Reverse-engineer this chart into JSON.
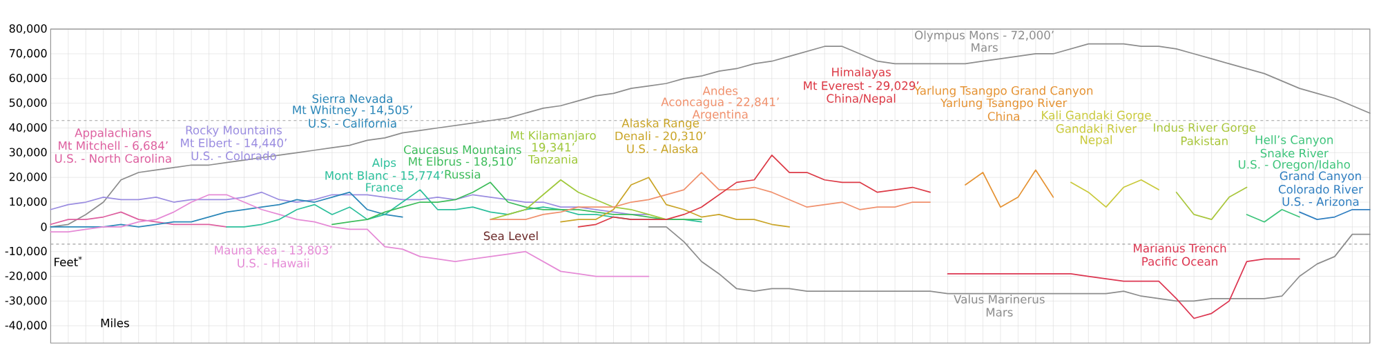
{
  "chart_data": {
    "type": "line",
    "xlabel": "Miles",
    "ylabel": "Feet$^{*}$",
    "categories": [
      null,
      null,
      null,
      null,
      null,
      null,
      null,
      null,
      null,
      null,
      null,
      null,
      null,
      null,
      null,
      null,
      null,
      null,
      null,
      null,
      null,
      null,
      null,
      null,
      null,
      null,
      null,
      null,
      null,
      null,
      null,
      null,
      null,
      null,
      null,
      null,
      null,
      null,
      null,
      null,
      null,
      null,
      null,
      null,
      null,
      null,
      null,
      null,
      null,
      null,
      null,
      null,
      null,
      null,
      null,
      null,
      null,
      null,
      null,
      null,
      null,
      null,
      null,
      null,
      null,
      null,
      null,
      null,
      null,
      null,
      null,
      null,
      null,
      null,
      null,
      null
    ],
    "ylim": [
      -47000,
      80000
    ],
    "yticks": [
      {
        "value": -40000,
        "label": "-40,000"
      },
      {
        "value": -30000,
        "label": "-30,000"
      },
      {
        "value": -20000,
        "label": "-20,000"
      },
      {
        "value": -10000,
        "label": "-10,000"
      },
      0,
      {
        "value": 10000,
        "label": "10,000"
      },
      {
        "value": 20000,
        "label": "20,000"
      },
      {
        "value": 30000,
        "label": "30,000"
      },
      {
        "value": 40000,
        "label": "40,000"
      },
      {
        "value": 50000,
        "label": "50,000"
      },
      {
        "value": 60000,
        "label": "60,000"
      },
      {
        "value": 70000,
        "label": "70,000"
      },
      {
        "value": 80000,
        "label": "80,000"
      }
    ],
    "tick_labels": "y",
    "grid": true,
    "line_style": "solid",
    "ref_lines": [
      {
        "axis": "y",
        "value": 43000,
        "color": "#a0a0a0",
        "line_style": "dashed"
      },
      {
        "axis": "y",
        "value": -7000,
        "color": "#a0a0a0",
        "line_style": "dashed"
      }
    ],
    "series": [
      {
        "color": "#8c8c8c",
        "values": [
          0,
          1000,
          5000,
          10000,
          19000,
          22000,
          23000,
          24000,
          25000,
          25000,
          26000,
          27000,
          28000,
          29000,
          30000,
          31000,
          32000,
          33000,
          35000,
          36000,
          38000,
          39000,
          40000,
          41000,
          42000,
          43000,
          44000,
          46000,
          48000,
          49000,
          51000,
          53000,
          54000,
          56000,
          57000,
          58000,
          60000,
          61000,
          63000,
          64000,
          66000,
          67000,
          69000,
          71000,
          73000,
          73000,
          70000,
          67000,
          66000,
          66000,
          66000,
          66000,
          66000,
          67000,
          68000,
          69000,
          70000,
          70000,
          72000,
          74000,
          74000,
          74000,
          73000,
          73000,
          72000,
          70000,
          68000,
          66000,
          64000,
          62000,
          59000,
          56000,
          54000,
          52000,
          49000,
          46000
        ]
      },
      {
        "color": "#8c8c8c",
        "values": [
          null,
          null,
          null,
          null,
          null,
          null,
          null,
          null,
          null,
          null,
          null,
          null,
          null,
          null,
          null,
          null,
          null,
          null,
          null,
          null,
          null,
          null,
          null,
          null,
          null,
          null,
          null,
          null,
          null,
          null,
          null,
          null,
          null,
          null,
          0,
          0,
          -6000,
          -14000,
          -19000,
          -25000,
          -26000,
          -25000,
          -25000,
          -26000,
          -26000,
          -26000,
          -26000,
          -26000,
          -26000,
          -26000,
          -26000,
          -27000,
          -27000,
          -27000,
          -27000,
          -27000,
          -27000,
          -27000,
          -27000,
          -27000,
          -27000,
          -26000,
          -28000,
          -29000,
          -30000,
          -30000,
          -29000,
          -29000,
          -29000,
          -29000,
          -28000,
          -20000,
          -15000,
          -12000,
          -3000,
          -3000
        ]
      },
      {
        "color": "#dd5f9f",
        "values": [
          1000,
          3000,
          3000,
          4000,
          6000,
          3000,
          2000,
          1000,
          1000,
          1000,
          0,
          null,
          null,
          null,
          null,
          null,
          null,
          null,
          null,
          null,
          null,
          null,
          null,
          null,
          null,
          null,
          null,
          null,
          null,
          null,
          null,
          null,
          null,
          null,
          null,
          null,
          null,
          null,
          null,
          null,
          null,
          null,
          null,
          null,
          null,
          null,
          null,
          null,
          null,
          null,
          null,
          null,
          null,
          null,
          null,
          null,
          null,
          null,
          null,
          null,
          null,
          null,
          null,
          null,
          null,
          null,
          null,
          null,
          null,
          null,
          null,
          null,
          null,
          null,
          null,
          null
        ]
      },
      {
        "color": "#9a8ce0",
        "values": [
          7000,
          9000,
          10000,
          12000,
          11000,
          11000,
          12000,
          10000,
          11000,
          11000,
          11000,
          12000,
          14000,
          11000,
          10000,
          11000,
          13000,
          13000,
          13000,
          12000,
          11000,
          11000,
          12000,
          11000,
          13000,
          12000,
          11000,
          10000,
          10000,
          8000,
          8000,
          7000,
          6000,
          5000,
          5000,
          null,
          null,
          null,
          null,
          null,
          null,
          null,
          null,
          null,
          null,
          null,
          null,
          null,
          null,
          null,
          null,
          null,
          null,
          null,
          null,
          null,
          null,
          null,
          null,
          null,
          null,
          null,
          null,
          null,
          null,
          null,
          null,
          null,
          null,
          null,
          null,
          null,
          null,
          null,
          null,
          null
        ]
      },
      {
        "color": "#2a86b8",
        "values": [
          0,
          0,
          0,
          0,
          1000,
          0,
          1000,
          2000,
          2000,
          4000,
          6000,
          7000,
          8000,
          9000,
          11000,
          10000,
          12000,
          14000,
          7000,
          5000,
          4000,
          null,
          null,
          null,
          null,
          null,
          null,
          null,
          null,
          null,
          null,
          null,
          null,
          null,
          null,
          null,
          null,
          null,
          null,
          null,
          null,
          null,
          null,
          null,
          null,
          null,
          null,
          null,
          null,
          null,
          null,
          null,
          null,
          null,
          null,
          null,
          null,
          null,
          null,
          null,
          null,
          null,
          null,
          null,
          null,
          null,
          null,
          null,
          null,
          null,
          null,
          null,
          null,
          null,
          null,
          null
        ]
      },
      {
        "color": "#e58ad6",
        "values": [
          -2000,
          -2000,
          -1000,
          0,
          0,
          2000,
          3000,
          6000,
          10000,
          13000,
          13000,
          10000,
          7000,
          5000,
          3000,
          2000,
          0,
          -1000,
          -1000,
          -8000,
          -9000,
          -12000,
          -13000,
          -14000,
          -13000,
          -12000,
          -11000,
          -10000,
          -14000,
          -18000,
          -19000,
          -20000,
          -20000,
          -20000,
          -20000,
          null,
          null,
          null,
          null,
          null,
          null,
          null,
          null,
          null,
          null,
          null,
          null,
          null,
          null,
          null,
          null,
          null,
          null,
          null,
          null,
          null,
          null,
          null,
          null,
          null,
          null,
          null,
          null,
          null,
          null,
          null,
          null,
          null,
          null,
          null,
          null,
          null,
          null,
          null,
          null,
          null
        ]
      },
      {
        "color": "#2bbf9b",
        "values": [
          null,
          null,
          null,
          null,
          null,
          null,
          null,
          null,
          null,
          null,
          0,
          0,
          1000,
          3000,
          7000,
          9000,
          5000,
          8000,
          3000,
          5000,
          10000,
          15000,
          7000,
          7000,
          8000,
          6000,
          5000,
          7000,
          8000,
          7000,
          5000,
          5000,
          4000,
          3000,
          3000,
          3000,
          3000,
          2000,
          null,
          null,
          null,
          null,
          null,
          null,
          null,
          null,
          null,
          null,
          null,
          null,
          null,
          null,
          null,
          null,
          null,
          null,
          null,
          null,
          null,
          null,
          null,
          null,
          null,
          null,
          null,
          null,
          null,
          null,
          null,
          null,
          null,
          null,
          null,
          null,
          null,
          null
        ]
      },
      {
        "color": "#3cbc5a",
        "values": [
          null,
          null,
          null,
          null,
          null,
          null,
          null,
          null,
          null,
          null,
          null,
          null,
          null,
          null,
          null,
          null,
          1000,
          2000,
          3000,
          6000,
          8000,
          10000,
          10000,
          11000,
          14000,
          18000,
          10000,
          8000,
          7000,
          7000,
          7000,
          6000,
          5000,
          5000,
          4000,
          3000,
          3000,
          3000,
          null,
          null,
          null,
          null,
          null,
          null,
          null,
          null,
          null,
          null,
          null,
          null,
          null,
          null,
          null,
          null,
          null,
          null,
          null,
          null,
          null,
          null,
          null,
          null,
          null,
          null,
          null,
          null,
          null,
          null,
          null,
          null,
          null,
          null,
          null,
          null,
          null,
          null
        ]
      },
      {
        "color": "#9fc83a",
        "values": [
          null,
          null,
          null,
          null,
          null,
          null,
          null,
          null,
          null,
          null,
          null,
          null,
          null,
          null,
          null,
          null,
          null,
          null,
          null,
          null,
          null,
          null,
          null,
          null,
          null,
          3000,
          5000,
          7000,
          13000,
          19000,
          14000,
          11000,
          8000,
          7000,
          5000,
          3000,
          null,
          null,
          null,
          null,
          null,
          null,
          null,
          null,
          null,
          null,
          null,
          null,
          null,
          null,
          null,
          null,
          null,
          null,
          null,
          null,
          null,
          null,
          null,
          null,
          null,
          null,
          null,
          null,
          null,
          null,
          null,
          null,
          null,
          null,
          null,
          null,
          null,
          null,
          null,
          null
        ]
      },
      {
        "color": "#c9a426",
        "values": [
          null,
          null,
          null,
          null,
          null,
          null,
          null,
          null,
          null,
          null,
          null,
          null,
          null,
          null,
          null,
          null,
          null,
          null,
          null,
          null,
          null,
          null,
          null,
          null,
          null,
          null,
          null,
          null,
          null,
          2000,
          3000,
          3000,
          7000,
          17000,
          20000,
          9000,
          7000,
          4000,
          5000,
          3000,
          3000,
          1000,
          0,
          null,
          null,
          null,
          null,
          null,
          null,
          null,
          null,
          null,
          null,
          null,
          null,
          null,
          null,
          null,
          null,
          null,
          null,
          null,
          null,
          null,
          null,
          null,
          null,
          null,
          null,
          null,
          null,
          null,
          null,
          null,
          null,
          null
        ]
      },
      {
        "color": "#f0906c",
        "values": [
          null,
          null,
          null,
          null,
          null,
          null,
          null,
          null,
          null,
          null,
          null,
          null,
          null,
          null,
          null,
          null,
          null,
          null,
          null,
          null,
          null,
          null,
          null,
          null,
          null,
          3000,
          3000,
          3000,
          5000,
          6000,
          8000,
          8000,
          8000,
          10000,
          11000,
          13000,
          15000,
          22000,
          15000,
          15000,
          16000,
          14000,
          11000,
          8000,
          9000,
          10000,
          7000,
          8000,
          8000,
          10000,
          10000,
          null,
          null,
          null,
          null,
          null,
          null,
          null,
          null,
          null,
          null,
          null,
          null,
          null,
          null,
          null,
          null,
          null,
          null,
          null,
          null,
          null,
          null,
          null,
          null,
          null
        ]
      },
      {
        "color": "#dc3945",
        "values": [
          null,
          null,
          null,
          null,
          null,
          null,
          null,
          null,
          null,
          null,
          null,
          null,
          null,
          null,
          null,
          null,
          null,
          null,
          null,
          null,
          null,
          null,
          null,
          null,
          null,
          null,
          null,
          null,
          null,
          null,
          0,
          1000,
          4000,
          3000,
          3000,
          3000,
          5000,
          8000,
          13000,
          18000,
          19000,
          29000,
          22000,
          22000,
          19000,
          18000,
          18000,
          14000,
          15000,
          16000,
          14000,
          null,
          null,
          null,
          null,
          null,
          null,
          null,
          null,
          null,
          null,
          null,
          null,
          null,
          null,
          null,
          null,
          null,
          null,
          null,
          null,
          null,
          null,
          null,
          null,
          null
        ]
      },
      {
        "color": "#e59232",
        "values": [
          null,
          null,
          null,
          null,
          null,
          null,
          null,
          null,
          null,
          null,
          null,
          null,
          null,
          null,
          null,
          null,
          null,
          null,
          null,
          null,
          null,
          null,
          null,
          null,
          null,
          null,
          null,
          null,
          null,
          null,
          null,
          null,
          null,
          null,
          null,
          null,
          null,
          null,
          null,
          null,
          null,
          null,
          null,
          null,
          null,
          null,
          null,
          null,
          null,
          null,
          null,
          null,
          17000,
          22000,
          8000,
          12000,
          23000,
          12000,
          null,
          null,
          null,
          null,
          null,
          null,
          null,
          null,
          null,
          null,
          null,
          null,
          null,
          null,
          null,
          null,
          null,
          null
        ]
      },
      {
        "color": "#c9c93a",
        "values": [
          null,
          null,
          null,
          null,
          null,
          null,
          null,
          null,
          null,
          null,
          null,
          null,
          null,
          null,
          null,
          null,
          null,
          null,
          null,
          null,
          null,
          null,
          null,
          null,
          null,
          null,
          null,
          null,
          null,
          null,
          null,
          null,
          null,
          null,
          null,
          null,
          null,
          null,
          null,
          null,
          null,
          null,
          null,
          null,
          null,
          null,
          null,
          null,
          null,
          null,
          null,
          null,
          null,
          null,
          null,
          null,
          null,
          null,
          18000,
          14000,
          8000,
          16000,
          19000,
          15000,
          null,
          null,
          null,
          null,
          null,
          null,
          null,
          null,
          null,
          null,
          null,
          null
        ]
      },
      {
        "color": "#a9c63c",
        "values": [
          null,
          null,
          null,
          null,
          null,
          null,
          null,
          null,
          null,
          null,
          null,
          null,
          null,
          null,
          null,
          null,
          null,
          null,
          null,
          null,
          null,
          null,
          null,
          null,
          null,
          null,
          null,
          null,
          null,
          null,
          null,
          null,
          null,
          null,
          null,
          null,
          null,
          null,
          null,
          null,
          null,
          null,
          null,
          null,
          null,
          null,
          null,
          null,
          null,
          null,
          null,
          null,
          null,
          null,
          null,
          null,
          null,
          null,
          null,
          null,
          null,
          null,
          null,
          null,
          14000,
          5000,
          3000,
          12000,
          16000,
          null,
          null,
          null,
          null,
          null,
          null,
          null
        ]
      },
      {
        "color": "#3cc47a",
        "values": [
          null,
          null,
          null,
          null,
          null,
          null,
          null,
          null,
          null,
          null,
          null,
          null,
          null,
          null,
          null,
          null,
          null,
          null,
          null,
          null,
          null,
          null,
          null,
          null,
          null,
          null,
          null,
          null,
          null,
          null,
          null,
          null,
          null,
          null,
          null,
          null,
          null,
          null,
          null,
          null,
          null,
          null,
          null,
          null,
          null,
          null,
          null,
          null,
          null,
          null,
          null,
          null,
          null,
          null,
          null,
          null,
          null,
          null,
          null,
          null,
          null,
          null,
          null,
          null,
          null,
          null,
          null,
          null,
          5000,
          2000,
          7000,
          4000,
          null,
          null,
          null,
          null
        ]
      },
      {
        "color": "#2f7ec0",
        "values": [
          null,
          null,
          null,
          null,
          null,
          null,
          null,
          null,
          null,
          null,
          null,
          null,
          null,
          null,
          null,
          null,
          null,
          null,
          null,
          null,
          null,
          null,
          null,
          null,
          null,
          null,
          null,
          null,
          null,
          null,
          null,
          null,
          null,
          null,
          null,
          null,
          null,
          null,
          null,
          null,
          null,
          null,
          null,
          null,
          null,
          null,
          null,
          null,
          null,
          null,
          null,
          null,
          null,
          null,
          null,
          null,
          null,
          null,
          null,
          null,
          null,
          null,
          null,
          null,
          null,
          null,
          null,
          null,
          null,
          null,
          null,
          6000,
          3000,
          4000,
          7000,
          7000
        ]
      },
      {
        "color": "#dc3550",
        "values": [
          null,
          null,
          null,
          null,
          null,
          null,
          null,
          null,
          null,
          null,
          null,
          null,
          null,
          null,
          null,
          null,
          null,
          null,
          null,
          null,
          null,
          null,
          null,
          null,
          null,
          null,
          null,
          null,
          null,
          null,
          null,
          null,
          null,
          null,
          null,
          null,
          null,
          null,
          null,
          null,
          null,
          null,
          null,
          null,
          null,
          null,
          null,
          null,
          null,
          null,
          null,
          -19000,
          -19000,
          -19000,
          -19000,
          -19000,
          -19000,
          -19000,
          -19000,
          -20000,
          -21000,
          -22000,
          -22000,
          -22000,
          -29000,
          -37000,
          -35000,
          -30000,
          -14000,
          -13000,
          -13000,
          -13000,
          null,
          null,
          null,
          null
        ]
      }
    ],
    "annotations": [
      "Olympus Mons - 72,000’",
      "Mars",
      "Valus Marinerus",
      "Mars",
      "Appalachians",
      "Mt Mitchell - 6,684’",
      "U.S. - North Carolina",
      "Rocky Mountains",
      "Mt Elbert - 14,440’",
      "U.S. - Colorado",
      "Sierra Nevada",
      "Mt Whitney - 14,505’",
      "U.S. - California",
      "Mauna Kea - 13,803’",
      "U.S. - Hawaii",
      "Alps",
      "Mont Blanc - 15,774’",
      "France",
      "Caucasus Mountains",
      "Mt Elbrus - 18,510’",
      "Russia",
      "Mt Kilamanjaro",
      "19,341’",
      "Tanzania",
      "Alaska Range",
      "Denali - 20,310’",
      "U.S. - Alaska",
      "Andes",
      "Aconcagua - 22,841’",
      "Argentina",
      "Himalayas",
      "Mt Everest - 29,029’",
      "China/Nepal",
      "Yarlung Tsangpo Grand Canyon",
      "Yarlung Tsangpo River",
      "China",
      "Kali Gandaki Gorge",
      "Gandaki River",
      "Nepal",
      "Indus River Gorge",
      "Pakistan",
      "Hell’s Canyon",
      "Snake River",
      "U.S. - Oregon/Idaho",
      "Grand Canyon",
      "Colorado River",
      "U.S. - Arizona",
      "Marianus Trench",
      "Pacific Ocean",
      "Sea Level"
    ]
  }
}
